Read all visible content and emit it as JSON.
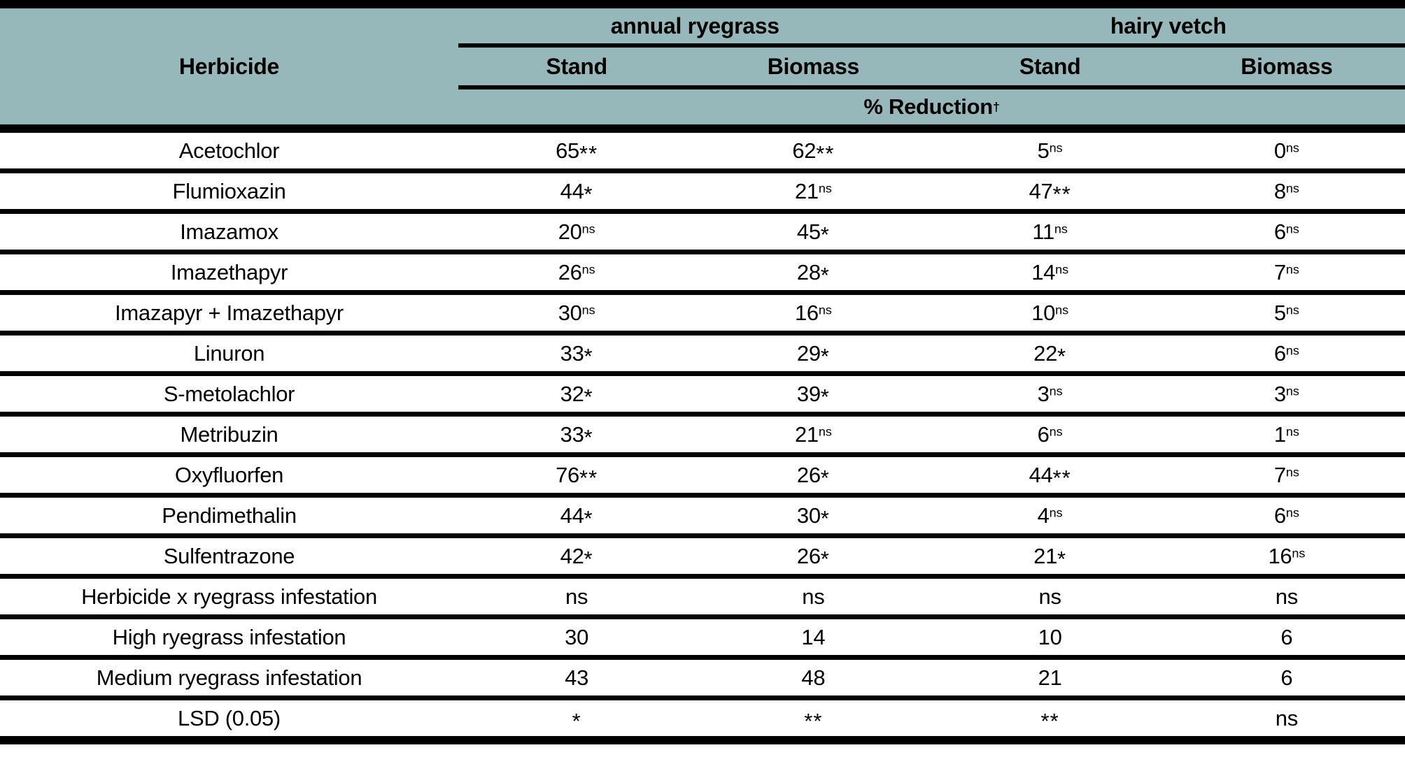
{
  "table": {
    "header": {
      "herbicide_col": "Herbicide",
      "group1": "annual ryegrass",
      "group2": "hairy vetch",
      "subcols": [
        "Stand",
        "Biomass",
        "Stand",
        "Biomass"
      ],
      "unit_label": "% Reduction",
      "unit_sup": "†"
    },
    "rows": [
      {
        "label": "Acetochlor",
        "cells": [
          {
            "v": "65",
            "sig": "**"
          },
          {
            "v": "62",
            "sig": "**"
          },
          {
            "v": "5",
            "sig": "ns"
          },
          {
            "v": "0",
            "sig": "ns"
          }
        ]
      },
      {
        "label": "Flumioxazin",
        "cells": [
          {
            "v": "44",
            "sig": "*"
          },
          {
            "v": "21",
            "sig": "ns"
          },
          {
            "v": "47",
            "sig": "**"
          },
          {
            "v": "8",
            "sig": "ns"
          }
        ]
      },
      {
        "label": "Imazamox",
        "cells": [
          {
            "v": "20",
            "sig": "ns"
          },
          {
            "v": "45",
            "sig": "*"
          },
          {
            "v": "11",
            "sig": "ns"
          },
          {
            "v": "6",
            "sig": "ns"
          }
        ]
      },
      {
        "label": "Imazethapyr",
        "cells": [
          {
            "v": "26",
            "sig": "ns"
          },
          {
            "v": "28",
            "sig": "*"
          },
          {
            "v": "14",
            "sig": "ns"
          },
          {
            "v": "7",
            "sig": "ns"
          }
        ]
      },
      {
        "label": "Imazapyr + Imazethapyr",
        "cells": [
          {
            "v": "30",
            "sig": "ns"
          },
          {
            "v": "16",
            "sig": "ns"
          },
          {
            "v": "10",
            "sig": "ns"
          },
          {
            "v": "5",
            "sig": "ns"
          }
        ]
      },
      {
        "label": "Linuron",
        "cells": [
          {
            "v": "33",
            "sig": "*"
          },
          {
            "v": "29",
            "sig": "*"
          },
          {
            "v": "22",
            "sig": "*"
          },
          {
            "v": "6",
            "sig": "ns"
          }
        ]
      },
      {
        "label": "S-metolachlor",
        "cells": [
          {
            "v": "32",
            "sig": "*"
          },
          {
            "v": "39",
            "sig": "*"
          },
          {
            "v": "3",
            "sig": "ns"
          },
          {
            "v": "3",
            "sig": "ns"
          }
        ]
      },
      {
        "label": "Metribuzin",
        "cells": [
          {
            "v": "33",
            "sig": "*"
          },
          {
            "v": "21",
            "sig": "ns"
          },
          {
            "v": "6",
            "sig": "ns"
          },
          {
            "v": "1",
            "sig": "ns"
          }
        ]
      },
      {
        "label": "Oxyfluorfen",
        "cells": [
          {
            "v": "76",
            "sig": "**"
          },
          {
            "v": "26",
            "sig": "*"
          },
          {
            "v": "44",
            "sig": "**"
          },
          {
            "v": "7",
            "sig": "ns"
          }
        ]
      },
      {
        "label": "Pendimethalin",
        "cells": [
          {
            "v": "44",
            "sig": "*"
          },
          {
            "v": "30",
            "sig": "*"
          },
          {
            "v": "4",
            "sig": "ns"
          },
          {
            "v": "6",
            "sig": "ns"
          }
        ]
      },
      {
        "label": "Sulfentrazone",
        "cells": [
          {
            "v": "42",
            "sig": "*"
          },
          {
            "v": "26",
            "sig": "*"
          },
          {
            "v": "21",
            "sig": "*"
          },
          {
            "v": "16",
            "sig": "ns"
          }
        ]
      },
      {
        "label": "Herbicide x ryegrass infestation",
        "cells": [
          {
            "v": "ns"
          },
          {
            "v": "ns"
          },
          {
            "v": "ns"
          },
          {
            "v": "ns"
          }
        ]
      },
      {
        "label": "High ryegrass infestation",
        "cells": [
          {
            "v": "30"
          },
          {
            "v": "14"
          },
          {
            "v": "10"
          },
          {
            "v": "6"
          }
        ]
      },
      {
        "label": "Medium ryegrass infestation",
        "cells": [
          {
            "v": "43"
          },
          {
            "v": "48"
          },
          {
            "v": "21"
          },
          {
            "v": "6"
          }
        ]
      },
      {
        "label": "LSD (0.05)",
        "cells": [
          {
            "v": "*"
          },
          {
            "v": "**"
          },
          {
            "v": "**"
          },
          {
            "v": "ns"
          }
        ]
      }
    ]
  },
  "colors": {
    "header_bg": "#97b8ba",
    "rule": "#000000",
    "text": "#000000",
    "body_bg": "#ffffff"
  }
}
